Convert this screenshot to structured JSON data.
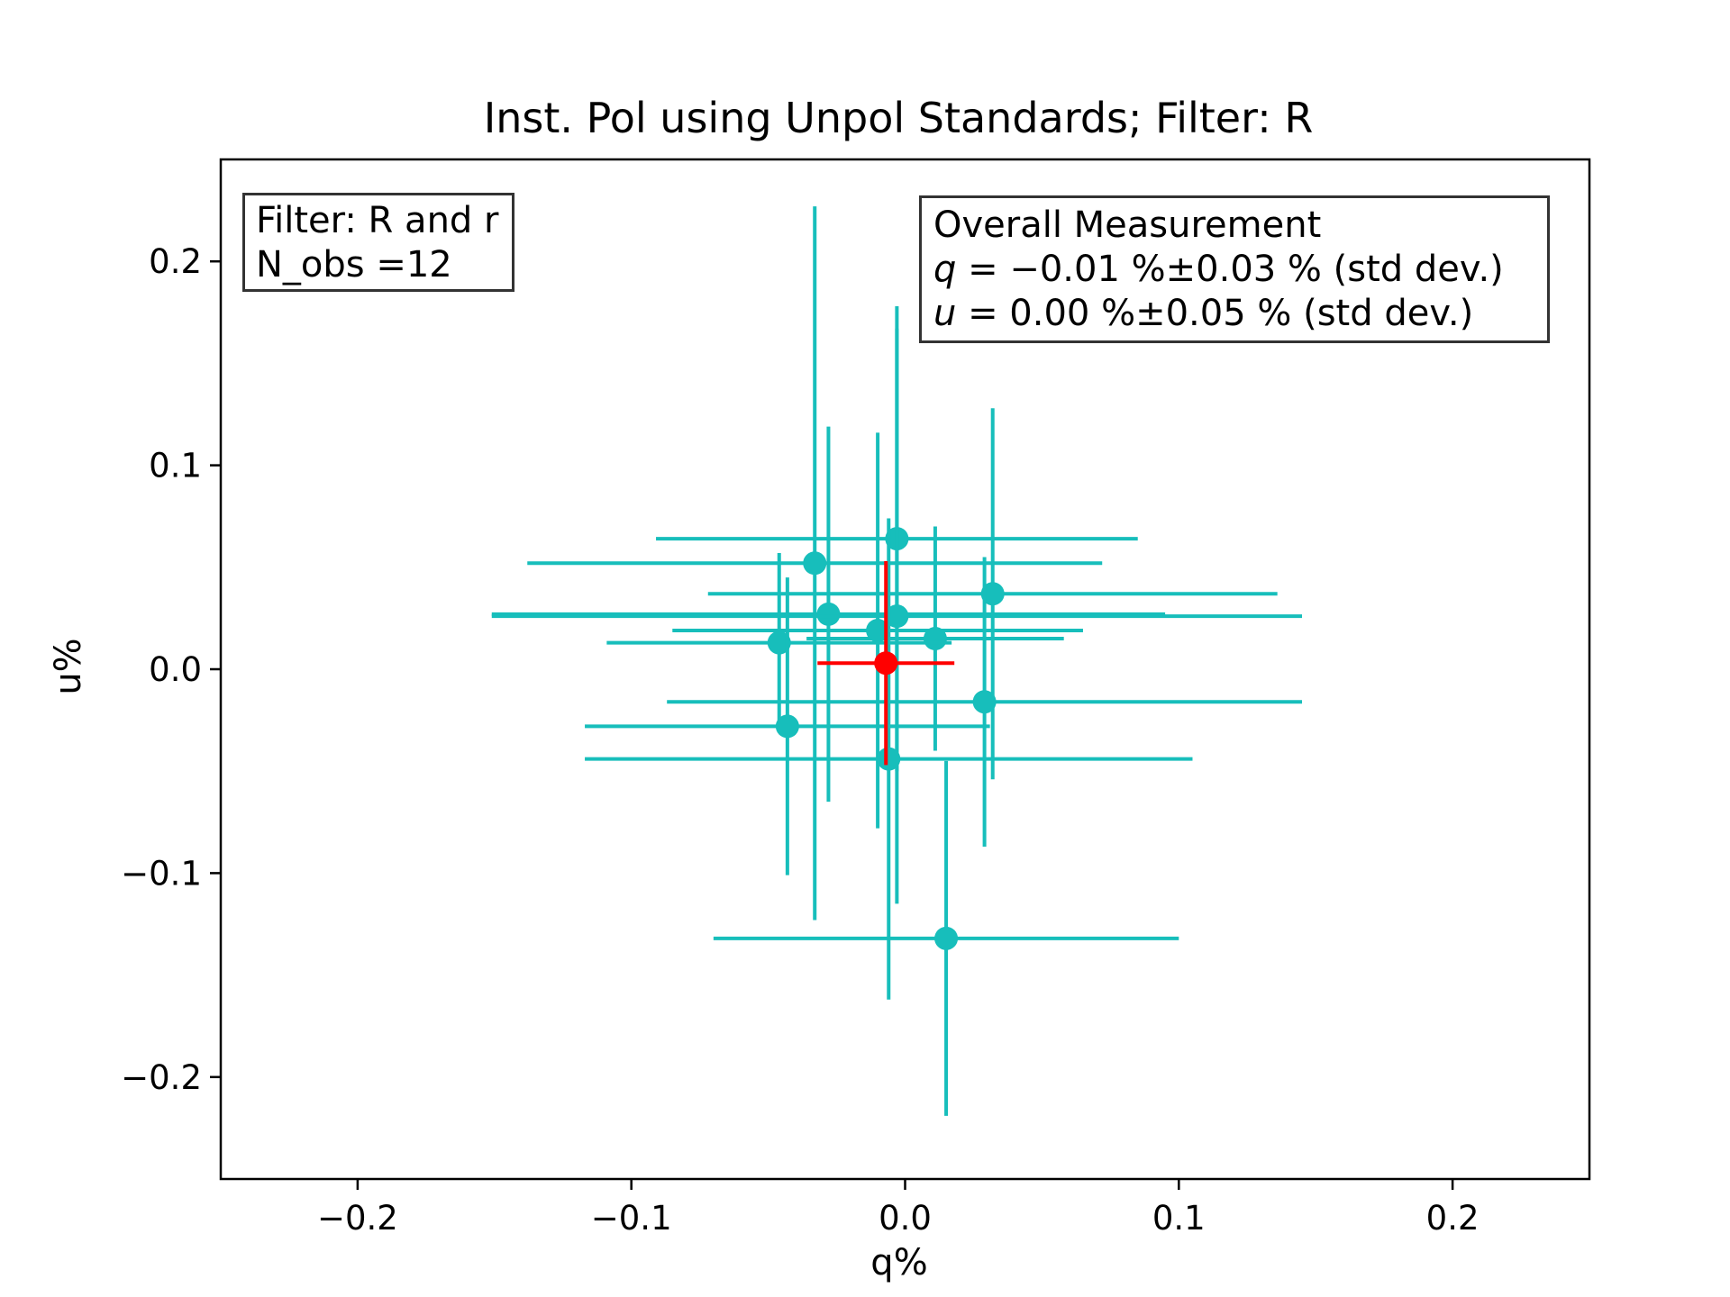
{
  "chart_data": {
    "type": "scatter",
    "title": "Inst. Pol using Unpol Standards; Filter: R",
    "xlabel": "q%",
    "ylabel": "u%",
    "xlim": [
      -0.25,
      0.25
    ],
    "ylim": [
      -0.25,
      0.25
    ],
    "xticks": [
      -0.2,
      -0.1,
      0.0,
      0.1,
      0.2
    ],
    "xtick_labels": [
      "−0.2",
      "−0.1",
      "0.0",
      "0.1",
      "0.2"
    ],
    "yticks": [
      -0.2,
      -0.1,
      0.0,
      0.1,
      0.2
    ],
    "ytick_labels": [
      "−0.2",
      "−0.1",
      "0.0",
      "0.1",
      "0.2"
    ],
    "grid": false,
    "series": [
      {
        "color": "#17BEBB",
        "points": [
          {
            "x": -0.033,
            "y": 0.052,
            "xerr": 0.105,
            "yerr": 0.175
          },
          {
            "x": -0.003,
            "y": 0.064,
            "xerr": 0.088,
            "yerr": 0.114
          },
          {
            "x": -0.028,
            "y": 0.027,
            "xerr": 0.123,
            "yerr": 0.092
          },
          {
            "x": -0.003,
            "y": 0.026,
            "xerr": 0.148,
            "yerr": 0.141
          },
          {
            "x": -0.01,
            "y": 0.019,
            "xerr": 0.075,
            "yerr": 0.097
          },
          {
            "x": 0.011,
            "y": 0.015,
            "xerr": 0.047,
            "yerr": 0.055
          },
          {
            "x": 0.032,
            "y": 0.037,
            "xerr": 0.104,
            "yerr": 0.091
          },
          {
            "x": -0.046,
            "y": 0.013,
            "xerr": 0.063,
            "yerr": 0.044
          },
          {
            "x": 0.029,
            "y": -0.016,
            "xerr": 0.116,
            "yerr": 0.071
          },
          {
            "x": -0.043,
            "y": -0.028,
            "xerr": 0.074,
            "yerr": 0.073
          },
          {
            "x": -0.006,
            "y": -0.044,
            "xerr": 0.111,
            "yerr": 0.118
          },
          {
            "x": 0.015,
            "y": -0.132,
            "xerr": 0.085,
            "yerr": 0.087
          }
        ]
      },
      {
        "color": "#FF0000",
        "points": [
          {
            "x": -0.007,
            "y": 0.003,
            "xerr": 0.025,
            "yerr": 0.05
          }
        ]
      }
    ],
    "annotations": {
      "filter_box": [
        "Filter: R and r",
        "N_obs =12"
      ],
      "overall_box": {
        "heading": "Overall Measurement",
        "q_symbol": "q",
        "q_text": " = −0.01 %±0.03 % (std dev.)",
        "u_symbol": "u",
        "u_text": " = 0.00 %±0.05 % (std dev.)"
      }
    }
  }
}
